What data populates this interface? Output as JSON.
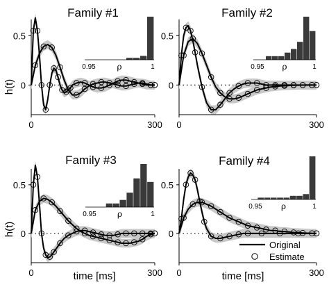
{
  "figure": {
    "ylabel": "h(t)",
    "xlabel": "time [ms]",
    "legend": {
      "original": "Original",
      "estimate": "Estimate"
    }
  },
  "chart_data": [
    {
      "type": "line",
      "title": "Family #1",
      "xlim": [
        0,
        300
      ],
      "ylim": [
        -0.3,
        0.72
      ],
      "x_ticks": [
        "0",
        "300"
      ],
      "y_ticks": [
        "0",
        "0.5"
      ],
      "series": [
        {
          "x": [
            0,
            5,
            10,
            15,
            20,
            25,
            30,
            35,
            40,
            45,
            50,
            55,
            60,
            65,
            70,
            75,
            80,
            85,
            90,
            95,
            100,
            110,
            120,
            130,
            140,
            150,
            160,
            170,
            180,
            190,
            200,
            210,
            220,
            230,
            240,
            250,
            260,
            270,
            280,
            290,
            300
          ],
          "values": [
            0,
            0.55,
            0.68,
            0.55,
            0.3,
            0.0,
            -0.2,
            -0.25,
            -0.15,
            0.0,
            0.12,
            0.17,
            0.15,
            0.08,
            0.0,
            -0.05,
            -0.08,
            -0.07,
            -0.05,
            -0.03,
            0.0,
            0.02,
            0.03,
            0.02,
            0.0,
            -0.02,
            -0.03,
            -0.03,
            -0.02,
            0.0,
            0.02,
            0.04,
            0.05,
            0.05,
            0.04,
            0.03,
            0.02,
            0.01,
            0.0,
            0.0,
            0.0
          ]
        },
        {
          "x": [
            0,
            10,
            20,
            30,
            40,
            50,
            60,
            70,
            80,
            90,
            100,
            110,
            120,
            130,
            140,
            150,
            160,
            170,
            180,
            190,
            200,
            210,
            220,
            230,
            240,
            250,
            260,
            270,
            280,
            290,
            300
          ],
          "values": [
            0,
            0.2,
            0.32,
            0.39,
            0.41,
            0.38,
            0.3,
            0.18,
            0.05,
            -0.05,
            -0.1,
            -0.1,
            -0.08,
            -0.04,
            -0.01,
            0.01,
            0.02,
            0.03,
            0.03,
            0.02,
            0.01,
            0.0,
            -0.01,
            -0.01,
            0.0,
            0.01,
            0.02,
            0.02,
            0.01,
            0.0,
            0.0
          ]
        }
      ],
      "histogram": {
        "xlim": [
          0.95,
          1
        ],
        "x_ticks": [
          "0.95",
          "ρ",
          "1"
        ],
        "bin_edges": [
          0.95,
          0.955,
          0.96,
          0.965,
          0.97,
          0.975,
          0.98,
          0.985,
          0.99,
          0.995,
          1.0
        ],
        "counts": [
          0,
          0,
          0,
          0,
          0,
          0,
          1,
          1,
          2,
          22
        ]
      }
    },
    {
      "type": "line",
      "title": "Family #2",
      "xlim": [
        0,
        300
      ],
      "ylim": [
        -0.3,
        0.72
      ],
      "x_ticks": [
        "0",
        "300"
      ],
      "y_ticks": [
        "0",
        "0.5"
      ],
      "series": [
        {
          "x": [
            0,
            5,
            10,
            15,
            20,
            25,
            30,
            35,
            40,
            50,
            60,
            70,
            80,
            90,
            100,
            110,
            120,
            130,
            140,
            150,
            160,
            170,
            180,
            190,
            200,
            210,
            220,
            230,
            240,
            250,
            260,
            270,
            280,
            290,
            300
          ],
          "values": [
            0,
            0.3,
            0.5,
            0.58,
            0.6,
            0.55,
            0.45,
            0.33,
            0.2,
            -0.02,
            -0.18,
            -0.25,
            -0.25,
            -0.2,
            -0.14,
            -0.08,
            -0.04,
            -0.01,
            0.01,
            0.02,
            0.02,
            0.02,
            0.01,
            0.0,
            0.0,
            0.0,
            0.0,
            0.0,
            0.0,
            0.0,
            0.0,
            0.0,
            0.0,
            0.0,
            0.0
          ]
        },
        {
          "x": [
            0,
            10,
            20,
            30,
            40,
            50,
            60,
            70,
            80,
            90,
            100,
            110,
            120,
            130,
            140,
            150,
            160,
            170,
            180,
            190,
            200,
            210,
            220,
            230,
            240,
            250,
            260,
            270,
            280,
            290,
            300
          ],
          "values": [
            0,
            0.3,
            0.44,
            0.47,
            0.42,
            0.32,
            0.2,
            0.08,
            -0.02,
            -0.08,
            -0.12,
            -0.14,
            -0.14,
            -0.13,
            -0.11,
            -0.09,
            -0.07,
            -0.05,
            -0.04,
            -0.03,
            -0.02,
            -0.015,
            -0.01,
            -0.008,
            -0.005,
            -0.003,
            -0.002,
            -0.001,
            0.0,
            0.0,
            0.0
          ]
        }
      ],
      "histogram": {
        "xlim": [
          0.95,
          1
        ],
        "x_ticks": [
          "0.95",
          "ρ",
          "1"
        ],
        "bin_edges": [
          0.95,
          0.955,
          0.96,
          0.965,
          0.97,
          0.975,
          0.98,
          0.985,
          0.99,
          0.995,
          1.0
        ],
        "counts": [
          0,
          0,
          1,
          1,
          1,
          2,
          3,
          5,
          12,
          8
        ]
      }
    },
    {
      "type": "line",
      "title": "Family #3",
      "xlim": [
        0,
        300
      ],
      "ylim": [
        -0.3,
        0.72
      ],
      "x_ticks": [
        "0",
        "300"
      ],
      "y_ticks": [
        "0",
        "0.5"
      ],
      "series": [
        {
          "x": [
            0,
            5,
            10,
            15,
            20,
            25,
            30,
            35,
            40,
            45,
            50,
            55,
            60,
            70,
            80,
            90,
            100,
            110,
            120,
            130,
            140,
            150,
            160,
            170,
            180,
            190,
            200,
            210,
            220,
            230,
            240,
            250,
            260,
            270,
            280,
            290,
            300
          ],
          "values": [
            0,
            0.5,
            0.7,
            0.58,
            0.3,
            0.0,
            -0.15,
            -0.22,
            -0.25,
            -0.24,
            -0.22,
            -0.19,
            -0.16,
            -0.1,
            -0.05,
            -0.02,
            0.0,
            0.02,
            0.03,
            0.03,
            0.02,
            0.01,
            0.0,
            -0.01,
            -0.02,
            -0.02,
            -0.02,
            -0.01,
            0.0,
            0.0,
            0.0,
            0.0,
            0.0,
            0.0,
            0.0,
            0.0,
            0.0
          ]
        },
        {
          "x": [
            0,
            10,
            20,
            30,
            40,
            50,
            60,
            70,
            80,
            90,
            100,
            110,
            120,
            130,
            140,
            150,
            160,
            170,
            180,
            190,
            200,
            210,
            220,
            230,
            240,
            250,
            260,
            270,
            280,
            290,
            300
          ],
          "values": [
            0,
            0.24,
            0.33,
            0.36,
            0.35,
            0.32,
            0.28,
            0.23,
            0.18,
            0.13,
            0.09,
            0.05,
            0.02,
            0.0,
            -0.02,
            -0.03,
            -0.04,
            -0.05,
            -0.06,
            -0.07,
            -0.08,
            -0.09,
            -0.1,
            -0.1,
            -0.1,
            -0.09,
            -0.08,
            -0.06,
            -0.03,
            -0.01,
            0.0
          ]
        }
      ],
      "histogram": {
        "xlim": [
          0.95,
          1
        ],
        "x_ticks": [
          "0.95",
          "ρ",
          "1"
        ],
        "bin_edges": [
          0.95,
          0.955,
          0.96,
          0.965,
          0.97,
          0.975,
          0.98,
          0.985,
          0.99,
          0.995,
          1.0
        ],
        "counts": [
          0,
          0,
          0,
          1,
          1,
          2,
          4,
          8,
          12,
          7
        ]
      }
    },
    {
      "type": "line",
      "title": "Family #4",
      "xlim": [
        0,
        300
      ],
      "ylim": [
        -0.3,
        0.72
      ],
      "x_ticks": [
        "0",
        "300"
      ],
      "y_ticks": [
        "0",
        "0.5"
      ],
      "series": [
        {
          "x": [
            0,
            5,
            10,
            15,
            20,
            25,
            30,
            35,
            40,
            45,
            50,
            55,
            60,
            70,
            80,
            90,
            100,
            110,
            120,
            130,
            140,
            150,
            160,
            180,
            200,
            220,
            240,
            260,
            280,
            300
          ],
          "values": [
            0,
            0.15,
            0.35,
            0.5,
            0.58,
            0.62,
            0.6,
            0.55,
            0.45,
            0.33,
            0.22,
            0.12,
            0.05,
            -0.03,
            -0.05,
            -0.05,
            -0.04,
            -0.03,
            -0.02,
            -0.01,
            0.0,
            0.0,
            0.0,
            0.0,
            0.0,
            0.0,
            0.0,
            0.0,
            0.0,
            0.0
          ]
        },
        {
          "x": [
            0,
            10,
            20,
            30,
            40,
            50,
            60,
            70,
            80,
            90,
            100,
            110,
            120,
            130,
            140,
            150,
            160,
            170,
            180,
            190,
            200,
            210,
            220,
            230,
            240,
            250,
            260,
            270,
            280,
            290,
            300
          ],
          "values": [
            0,
            0.16,
            0.25,
            0.3,
            0.32,
            0.32,
            0.3,
            0.28,
            0.25,
            0.22,
            0.19,
            0.16,
            0.14,
            0.12,
            0.1,
            0.08,
            0.07,
            0.06,
            0.05,
            0.04,
            0.03,
            0.03,
            0.02,
            0.02,
            0.015,
            0.01,
            0.008,
            0.005,
            0.003,
            0.001,
            0.0
          ]
        }
      ],
      "histogram": {
        "xlim": [
          0.95,
          1
        ],
        "x_ticks": [
          "0.95",
          "ρ",
          "1"
        ],
        "bin_edges": [
          0.95,
          0.955,
          0.96,
          0.965,
          0.97,
          0.975,
          0.98,
          0.985,
          0.99,
          0.995,
          1.0
        ],
        "counts": [
          0,
          1,
          1,
          1,
          1,
          1,
          2,
          2,
          3,
          24
        ]
      }
    }
  ]
}
